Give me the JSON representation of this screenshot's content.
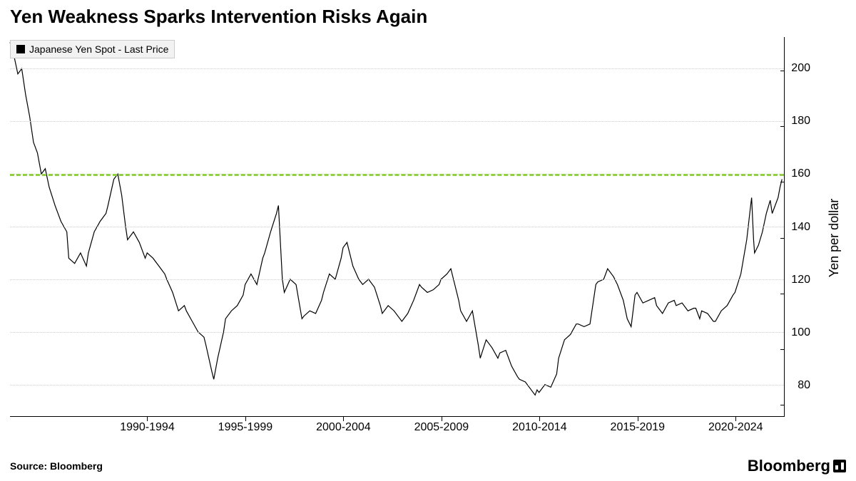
{
  "title": "Yen Weakness Sparks Intervention Risks Again",
  "legend": {
    "label": "Japanese Yen Spot - Last Price",
    "swatch_color": "#000000"
  },
  "source": "Source: Bloomberg",
  "brand": "Bloomberg",
  "chart": {
    "type": "line",
    "line_color": "#000000",
    "line_width": 1.2,
    "background_color": "#ffffff",
    "grid_color": "#cccccc",
    "axis_color": "#000000",
    "reference_line": {
      "value": 160,
      "color": "#8fd13f",
      "dash": "6,6",
      "width": 3
    },
    "y_axis": {
      "label": "Yen per dollar",
      "min": 68,
      "max": 212,
      "ticks": [
        80,
        100,
        120,
        140,
        160,
        180,
        200
      ],
      "label_fontsize": 18,
      "tick_fontsize": 16
    },
    "x_axis": {
      "min": 1985,
      "max": 2024.5,
      "tick_positions": [
        1992,
        1997,
        2002,
        2007,
        2012,
        2017,
        2022
      ],
      "tick_labels": [
        "1990-1994",
        "1995-1999",
        "2000-2004",
        "2005-2009",
        "2010-2014",
        "2015-2019",
        "2020-2024"
      ],
      "tick_fontsize": 16
    },
    "series": [
      {
        "x": 1985.0,
        "y": 210
      },
      {
        "x": 1985.2,
        "y": 205
      },
      {
        "x": 1985.4,
        "y": 198
      },
      {
        "x": 1985.6,
        "y": 200
      },
      {
        "x": 1985.8,
        "y": 190
      },
      {
        "x": 1986.0,
        "y": 182
      },
      {
        "x": 1986.2,
        "y": 172
      },
      {
        "x": 1986.4,
        "y": 168
      },
      {
        "x": 1986.6,
        "y": 160
      },
      {
        "x": 1986.8,
        "y": 162
      },
      {
        "x": 1987.0,
        "y": 155
      },
      {
        "x": 1987.3,
        "y": 148
      },
      {
        "x": 1987.6,
        "y": 142
      },
      {
        "x": 1987.9,
        "y": 138
      },
      {
        "x": 1988.0,
        "y": 128
      },
      {
        "x": 1988.3,
        "y": 126
      },
      {
        "x": 1988.6,
        "y": 130
      },
      {
        "x": 1988.9,
        "y": 125
      },
      {
        "x": 1989.0,
        "y": 130
      },
      {
        "x": 1989.3,
        "y": 138
      },
      {
        "x": 1989.6,
        "y": 142
      },
      {
        "x": 1989.9,
        "y": 145
      },
      {
        "x": 1990.0,
        "y": 148
      },
      {
        "x": 1990.3,
        "y": 158
      },
      {
        "x": 1990.5,
        "y": 160
      },
      {
        "x": 1990.7,
        "y": 152
      },
      {
        "x": 1990.9,
        "y": 140
      },
      {
        "x": 1991.0,
        "y": 135
      },
      {
        "x": 1991.3,
        "y": 138
      },
      {
        "x": 1991.6,
        "y": 134
      },
      {
        "x": 1991.9,
        "y": 128
      },
      {
        "x": 1992.0,
        "y": 130
      },
      {
        "x": 1992.3,
        "y": 128
      },
      {
        "x": 1992.6,
        "y": 125
      },
      {
        "x": 1992.9,
        "y": 122
      },
      {
        "x": 1993.0,
        "y": 120
      },
      {
        "x": 1993.3,
        "y": 115
      },
      {
        "x": 1993.6,
        "y": 108
      },
      {
        "x": 1993.9,
        "y": 110
      },
      {
        "x": 1994.0,
        "y": 108
      },
      {
        "x": 1994.3,
        "y": 104
      },
      {
        "x": 1994.6,
        "y": 100
      },
      {
        "x": 1994.9,
        "y": 98
      },
      {
        "x": 1995.0,
        "y": 95
      },
      {
        "x": 1995.3,
        "y": 85
      },
      {
        "x": 1995.4,
        "y": 82
      },
      {
        "x": 1995.6,
        "y": 90
      },
      {
        "x": 1995.9,
        "y": 100
      },
      {
        "x": 1996.0,
        "y": 105
      },
      {
        "x": 1996.3,
        "y": 108
      },
      {
        "x": 1996.6,
        "y": 110
      },
      {
        "x": 1996.9,
        "y": 114
      },
      {
        "x": 1997.0,
        "y": 118
      },
      {
        "x": 1997.3,
        "y": 122
      },
      {
        "x": 1997.6,
        "y": 118
      },
      {
        "x": 1997.9,
        "y": 128
      },
      {
        "x": 1998.0,
        "y": 130
      },
      {
        "x": 1998.3,
        "y": 138
      },
      {
        "x": 1998.6,
        "y": 145
      },
      {
        "x": 1998.7,
        "y": 148
      },
      {
        "x": 1998.9,
        "y": 120
      },
      {
        "x": 1999.0,
        "y": 115
      },
      {
        "x": 1999.3,
        "y": 120
      },
      {
        "x": 1999.6,
        "y": 118
      },
      {
        "x": 1999.9,
        "y": 105
      },
      {
        "x": 2000.0,
        "y": 106
      },
      {
        "x": 2000.3,
        "y": 108
      },
      {
        "x": 2000.6,
        "y": 107
      },
      {
        "x": 2000.9,
        "y": 112
      },
      {
        "x": 2001.0,
        "y": 115
      },
      {
        "x": 2001.3,
        "y": 122
      },
      {
        "x": 2001.6,
        "y": 120
      },
      {
        "x": 2001.9,
        "y": 128
      },
      {
        "x": 2002.0,
        "y": 132
      },
      {
        "x": 2002.2,
        "y": 134
      },
      {
        "x": 2002.5,
        "y": 125
      },
      {
        "x": 2002.8,
        "y": 120
      },
      {
        "x": 2003.0,
        "y": 118
      },
      {
        "x": 2003.3,
        "y": 120
      },
      {
        "x": 2003.6,
        "y": 117
      },
      {
        "x": 2003.9,
        "y": 110
      },
      {
        "x": 2004.0,
        "y": 107
      },
      {
        "x": 2004.3,
        "y": 110
      },
      {
        "x": 2004.6,
        "y": 108
      },
      {
        "x": 2004.9,
        "y": 105
      },
      {
        "x": 2005.0,
        "y": 104
      },
      {
        "x": 2005.3,
        "y": 107
      },
      {
        "x": 2005.6,
        "y": 112
      },
      {
        "x": 2005.9,
        "y": 118
      },
      {
        "x": 2006.0,
        "y": 117
      },
      {
        "x": 2006.3,
        "y": 115
      },
      {
        "x": 2006.6,
        "y": 116
      },
      {
        "x": 2006.9,
        "y": 118
      },
      {
        "x": 2007.0,
        "y": 120
      },
      {
        "x": 2007.3,
        "y": 122
      },
      {
        "x": 2007.5,
        "y": 124
      },
      {
        "x": 2007.7,
        "y": 118
      },
      {
        "x": 2007.9,
        "y": 112
      },
      {
        "x": 2008.0,
        "y": 108
      },
      {
        "x": 2008.3,
        "y": 104
      },
      {
        "x": 2008.6,
        "y": 108
      },
      {
        "x": 2008.9,
        "y": 95
      },
      {
        "x": 2009.0,
        "y": 90
      },
      {
        "x": 2009.3,
        "y": 97
      },
      {
        "x": 2009.6,
        "y": 94
      },
      {
        "x": 2009.9,
        "y": 90
      },
      {
        "x": 2010.0,
        "y": 92
      },
      {
        "x": 2010.3,
        "y": 93
      },
      {
        "x": 2010.6,
        "y": 87
      },
      {
        "x": 2010.9,
        "y": 83
      },
      {
        "x": 2011.0,
        "y": 82
      },
      {
        "x": 2011.3,
        "y": 81
      },
      {
        "x": 2011.6,
        "y": 78
      },
      {
        "x": 2011.8,
        "y": 76
      },
      {
        "x": 2011.9,
        "y": 78
      },
      {
        "x": 2012.0,
        "y": 77
      },
      {
        "x": 2012.3,
        "y": 80
      },
      {
        "x": 2012.6,
        "y": 79
      },
      {
        "x": 2012.9,
        "y": 84
      },
      {
        "x": 2013.0,
        "y": 90
      },
      {
        "x": 2013.3,
        "y": 97
      },
      {
        "x": 2013.6,
        "y": 99
      },
      {
        "x": 2013.9,
        "y": 103
      },
      {
        "x": 2014.0,
        "y": 103
      },
      {
        "x": 2014.3,
        "y": 102
      },
      {
        "x": 2014.6,
        "y": 103
      },
      {
        "x": 2014.9,
        "y": 118
      },
      {
        "x": 2015.0,
        "y": 119
      },
      {
        "x": 2015.3,
        "y": 120
      },
      {
        "x": 2015.5,
        "y": 124
      },
      {
        "x": 2015.8,
        "y": 121
      },
      {
        "x": 2016.0,
        "y": 118
      },
      {
        "x": 2016.3,
        "y": 112
      },
      {
        "x": 2016.5,
        "y": 105
      },
      {
        "x": 2016.7,
        "y": 102
      },
      {
        "x": 2016.9,
        "y": 114
      },
      {
        "x": 2017.0,
        "y": 115
      },
      {
        "x": 2017.3,
        "y": 111
      },
      {
        "x": 2017.6,
        "y": 112
      },
      {
        "x": 2017.9,
        "y": 113
      },
      {
        "x": 2018.0,
        "y": 110
      },
      {
        "x": 2018.3,
        "y": 107
      },
      {
        "x": 2018.6,
        "y": 111
      },
      {
        "x": 2018.9,
        "y": 112
      },
      {
        "x": 2019.0,
        "y": 110
      },
      {
        "x": 2019.3,
        "y": 111
      },
      {
        "x": 2019.6,
        "y": 108
      },
      {
        "x": 2019.9,
        "y": 109
      },
      {
        "x": 2020.0,
        "y": 109
      },
      {
        "x": 2020.2,
        "y": 105
      },
      {
        "x": 2020.3,
        "y": 108
      },
      {
        "x": 2020.6,
        "y": 107
      },
      {
        "x": 2020.9,
        "y": 104
      },
      {
        "x": 2021.0,
        "y": 104
      },
      {
        "x": 2021.3,
        "y": 108
      },
      {
        "x": 2021.6,
        "y": 110
      },
      {
        "x": 2021.9,
        "y": 114
      },
      {
        "x": 2022.0,
        "y": 115
      },
      {
        "x": 2022.3,
        "y": 122
      },
      {
        "x": 2022.6,
        "y": 135
      },
      {
        "x": 2022.8,
        "y": 148
      },
      {
        "x": 2022.85,
        "y": 151
      },
      {
        "x": 2022.95,
        "y": 135
      },
      {
        "x": 2023.0,
        "y": 130
      },
      {
        "x": 2023.2,
        "y": 133
      },
      {
        "x": 2023.4,
        "y": 138
      },
      {
        "x": 2023.6,
        "y": 145
      },
      {
        "x": 2023.8,
        "y": 150
      },
      {
        "x": 2023.9,
        "y": 145
      },
      {
        "x": 2024.0,
        "y": 147
      },
      {
        "x": 2024.2,
        "y": 151
      },
      {
        "x": 2024.3,
        "y": 155
      },
      {
        "x": 2024.4,
        "y": 158
      }
    ]
  }
}
